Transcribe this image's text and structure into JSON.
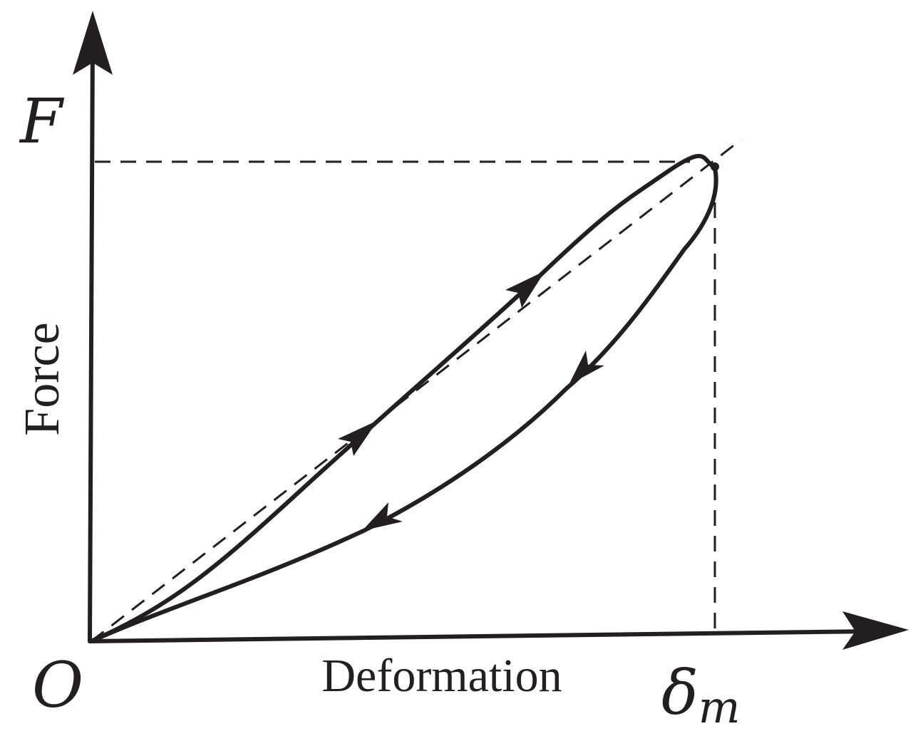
{
  "labels": {
    "y_symbol": "F",
    "y_name": "Force",
    "x_name": "Deformation",
    "origin": "O",
    "x_max_symbol": "δ",
    "x_max_subscript": "m"
  },
  "colors": {
    "ink": "#231f20",
    "background": "#ffffff"
  }
}
